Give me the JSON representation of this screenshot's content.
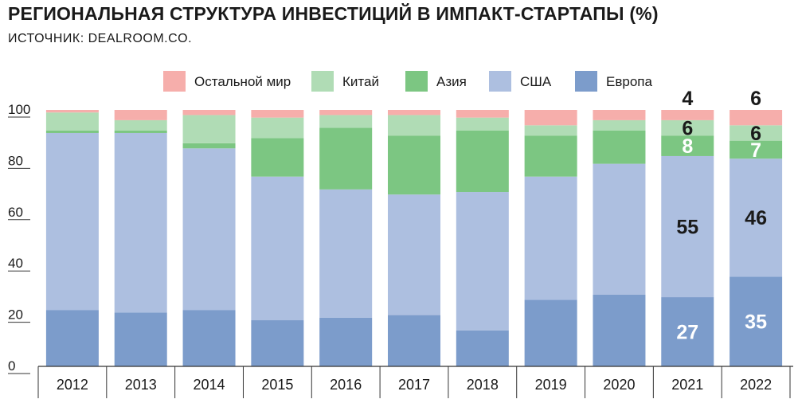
{
  "title": "РЕГИОНАЛЬНАЯ СТРУКТУРА ИНВЕСТИЦИЙ В ИМПАКТ-СТАРТАПЫ (%)",
  "source": "ИСТОЧНИК: DEALROOM.CO.",
  "chart_data": {
    "type": "bar",
    "stacked": true,
    "title": "РЕГИОНАЛЬНАЯ СТРУКТУРА ИНВЕСТИЦИЙ В ИМПАКТ-СТАРТАПЫ (%)",
    "xlabel": "",
    "ylabel": "",
    "ylim": [
      0,
      100
    ],
    "yticks": [
      "0",
      "20",
      "40",
      "60",
      "80",
      "100"
    ],
    "categories": [
      "2012",
      "2013",
      "2014",
      "2015",
      "2016",
      "2017",
      "2018",
      "2019",
      "2020",
      "2021",
      "2022"
    ],
    "legend_position": "top",
    "series": [
      {
        "name": "Европа",
        "color": "#7c9ccb",
        "values": [
          22,
          21,
          22,
          18,
          19,
          20,
          14,
          26,
          28,
          27,
          35
        ]
      },
      {
        "name": "США",
        "color": "#adbfe0",
        "values": [
          69,
          70,
          63,
          56,
          50,
          47,
          54,
          48,
          51,
          55,
          46
        ]
      },
      {
        "name": "Азия",
        "color": "#7cc682",
        "values": [
          1,
          1,
          2,
          15,
          24,
          23,
          24,
          16,
          13,
          8,
          7
        ]
      },
      {
        "name": "Китай",
        "color": "#b0dcb5",
        "values": [
          7,
          4,
          11,
          8,
          5,
          8,
          5,
          4,
          4,
          6,
          6
        ]
      },
      {
        "name": "Остальной мир",
        "color": "#f6aeab",
        "values": [
          1,
          4,
          2,
          3,
          2,
          2,
          3,
          6,
          4,
          4,
          6
        ]
      }
    ],
    "legend_order": [
      "Остальной мир",
      "Китай",
      "Азия",
      "США",
      "Европа"
    ],
    "data_labels": [
      {
        "category": "2021",
        "series": "Европа",
        "text": "27"
      },
      {
        "category": "2021",
        "series": "США",
        "text": "55"
      },
      {
        "category": "2021",
        "series": "Азия",
        "text": "8"
      },
      {
        "category": "2021",
        "series": "Китай",
        "text": "6"
      },
      {
        "category": "2021",
        "series": "Остальной мир",
        "text": "4"
      },
      {
        "category": "2022",
        "series": "Европа",
        "text": "35"
      },
      {
        "category": "2022",
        "series": "США",
        "text": "46"
      },
      {
        "category": "2022",
        "series": "Азия",
        "text": "7"
      },
      {
        "category": "2022",
        "series": "Китай",
        "text": "6"
      },
      {
        "category": "2022",
        "series": "Остальной мир",
        "text": "6"
      }
    ]
  }
}
